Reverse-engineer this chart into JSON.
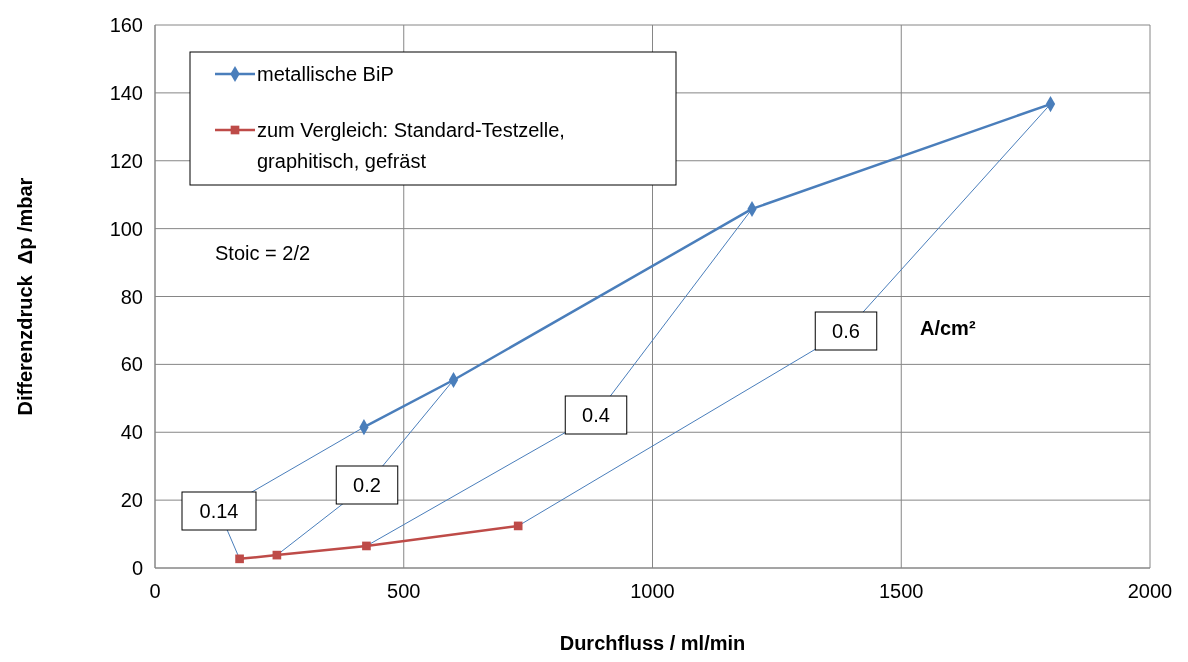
{
  "chart_data": {
    "type": "line",
    "xlabel": "Durchfluss / ml/min",
    "ylabel": "Differenzdruck  Δp /mbar",
    "xlim": [
      0,
      2000
    ],
    "xticks": [
      0,
      500,
      1000,
      1500,
      2000
    ],
    "ylim": [
      0,
      160
    ],
    "yticks": [
      0,
      20,
      40,
      60,
      80,
      100,
      120,
      140,
      160
    ],
    "grid": true,
    "legend": "top left",
    "series": [
      {
        "name": "metallische BiP",
        "color": "#4a7ebb",
        "marker": "diamond",
        "x": [
          420,
          600,
          1200,
          1800
        ],
        "values": [
          41.5,
          55.4,
          105.8,
          136.7
        ]
      },
      {
        "name": "zum Vergleich: Standard-Testzelle, graphitisch, gefräst",
        "color": "#be4b48",
        "marker": "square",
        "x": [
          170,
          245,
          425,
          730
        ],
        "values": [
          2.7,
          3.8,
          6.5,
          12.4
        ]
      }
    ],
    "annotations": [
      {
        "text": "0.14",
        "x": 420,
        "y": 41.5
      },
      {
        "text": "0.2",
        "x": 600,
        "y": 55.4
      },
      {
        "text": "0.4",
        "x": 1200,
        "y": 105.8
      },
      {
        "text": "0.6",
        "x": 1800,
        "y": 136.7
      },
      "Stoic = 2/2",
      "A/cm²"
    ]
  }
}
